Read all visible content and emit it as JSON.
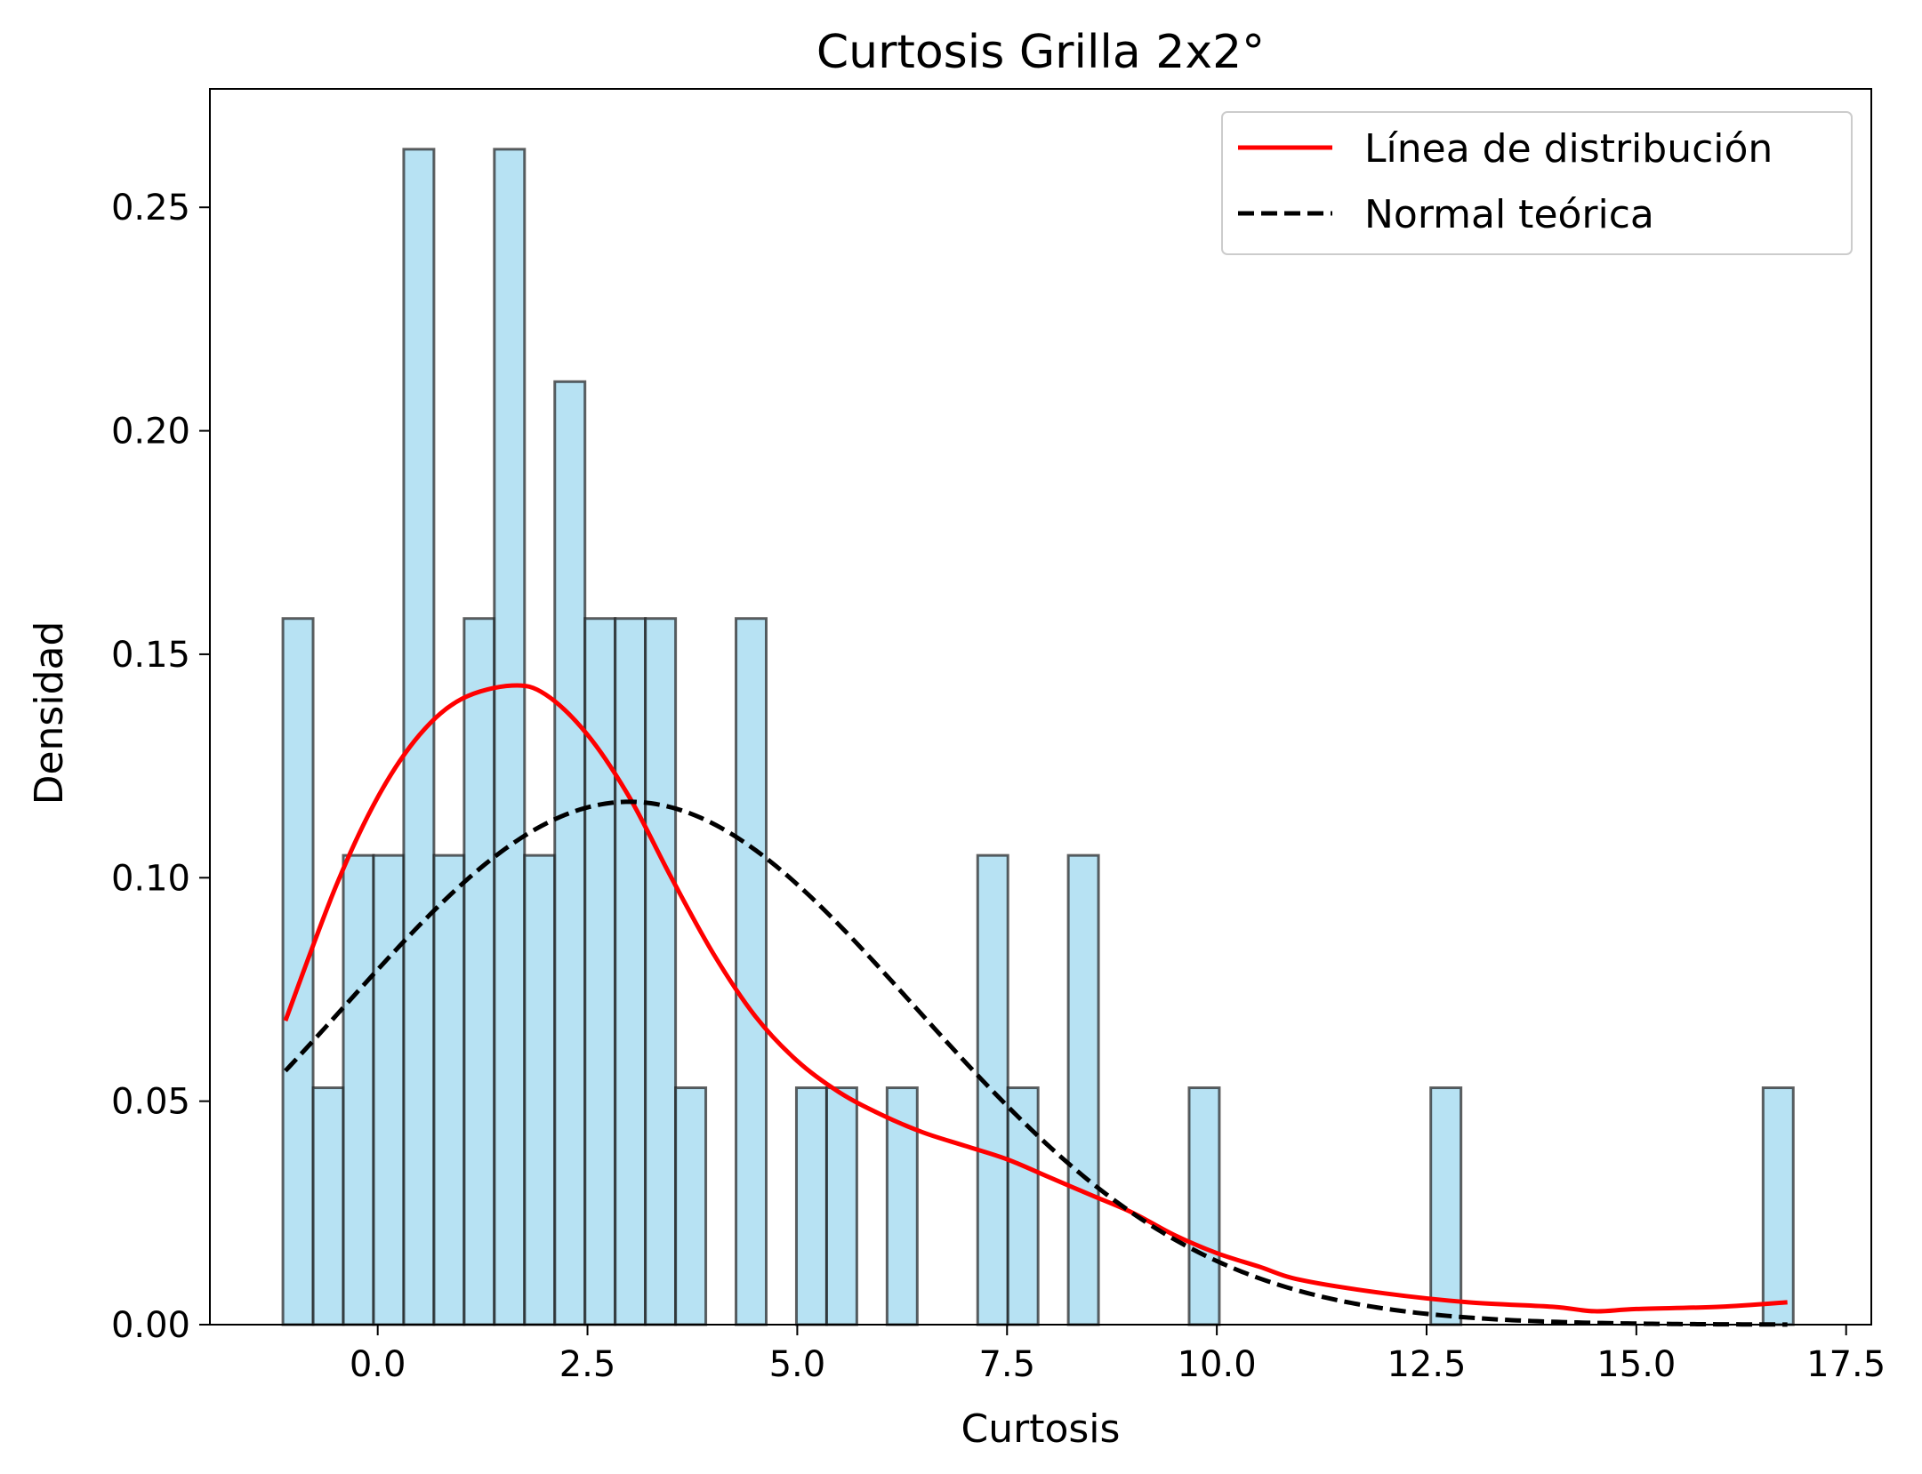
{
  "chart_data": {
    "type": "bar",
    "title": "Curtosis Grilla 2x2°",
    "xlabel": "Curtosis",
    "ylabel": "Densidad",
    "xlim": [
      -2.0,
      17.8
    ],
    "ylim": [
      0,
      0.2765
    ],
    "xticks": [
      0.0,
      2.5,
      5.0,
      7.5,
      10.0,
      12.5,
      15.0,
      17.5
    ],
    "xtick_labels": [
      "0.0",
      "2.5",
      "5.0",
      "7.5",
      "10.0",
      "12.5",
      "15.0",
      "17.5"
    ],
    "yticks": [
      0.0,
      0.05,
      0.1,
      0.15,
      0.2,
      0.25
    ],
    "ytick_labels": [
      "0.00",
      "0.05",
      "0.10",
      "0.15",
      "0.20",
      "0.25"
    ],
    "grid": false,
    "legend_position": "top-right",
    "bins": {
      "edges_start": -1.13,
      "bin_width": 0.36,
      "values": [
        0.158,
        0.053,
        0.105,
        0.105,
        0.263,
        0.105,
        0.158,
        0.263,
        0.105,
        0.211,
        0.158,
        0.158,
        0.158,
        0.053,
        0,
        0.158,
        0,
        0.053,
        0.053,
        0,
        0.053,
        0,
        0,
        0.105,
        0.053,
        0,
        0.105,
        0,
        0,
        0,
        0.053,
        0,
        0,
        0,
        0,
        0,
        0,
        0,
        0.053,
        0,
        0,
        0,
        0,
        0,
        0,
        0,
        0,
        0,
        0,
        0.053
      ],
      "fill": "#87ceeb",
      "fill_opacity": 0.6,
      "edge": "#1e1e1e"
    },
    "series": [
      {
        "name": "Línea de distribución",
        "color": "#ff0000",
        "style": "solid",
        "x": [
          -1.1,
          -0.5,
          0.0,
          0.5,
          1.0,
          1.6,
          2.0,
          2.5,
          3.0,
          3.5,
          4.0,
          4.5,
          5.0,
          5.5,
          6.0,
          6.5,
          7.0,
          7.5,
          8.0,
          8.5,
          9.0,
          9.5,
          10.0,
          10.5,
          11.0,
          12.0,
          13.0,
          14.0,
          14.5,
          15.0,
          16.0,
          16.8
        ],
        "y": [
          0.068,
          0.098,
          0.118,
          0.132,
          0.14,
          0.143,
          0.141,
          0.132,
          0.118,
          0.1,
          0.083,
          0.069,
          0.059,
          0.052,
          0.047,
          0.043,
          0.04,
          0.037,
          0.033,
          0.029,
          0.025,
          0.02,
          0.016,
          0.013,
          0.01,
          0.007,
          0.005,
          0.004,
          0.003,
          0.0035,
          0.004,
          0.005
        ]
      },
      {
        "name": "Normal teórica",
        "color": "#000000",
        "style": "dashed",
        "normal_mu": 3.0,
        "normal_sigma": 3.41
      }
    ]
  }
}
